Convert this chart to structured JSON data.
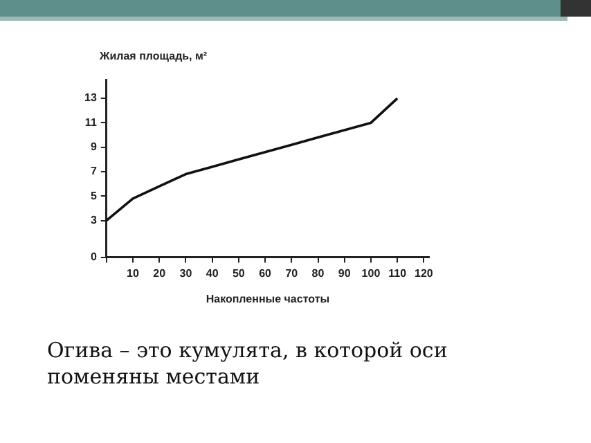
{
  "chart_data": {
    "type": "line",
    "ylabel": "Жилая площадь, м²",
    "xlabel": "Накопленные частоты",
    "x": [
      0,
      10,
      20,
      30,
      40,
      50,
      60,
      70,
      80,
      90,
      100,
      110
    ],
    "series": [
      {
        "color": "#111111",
        "values": [
          3,
          4.8,
          5.8,
          6.8,
          7.4,
          8.0,
          8.6,
          9.2,
          9.8,
          10.4,
          11,
          13
        ]
      }
    ],
    "xlim": [
      0,
      122
    ],
    "xticks": [
      {
        "value": 0,
        "label": null
      },
      10,
      20,
      30,
      40,
      50,
      60,
      70,
      80,
      90,
      100,
      110,
      120
    ],
    "ylim": [
      0,
      14.5
    ],
    "yticks": [
      0,
      3,
      5,
      7,
      9,
      11,
      13
    ],
    "grid": false,
    "legend": false,
    "marker": "none",
    "line_style": "solid",
    "annotations": [
      "Огива – это кумулята, в которой оси поменяны местами"
    ]
  }
}
